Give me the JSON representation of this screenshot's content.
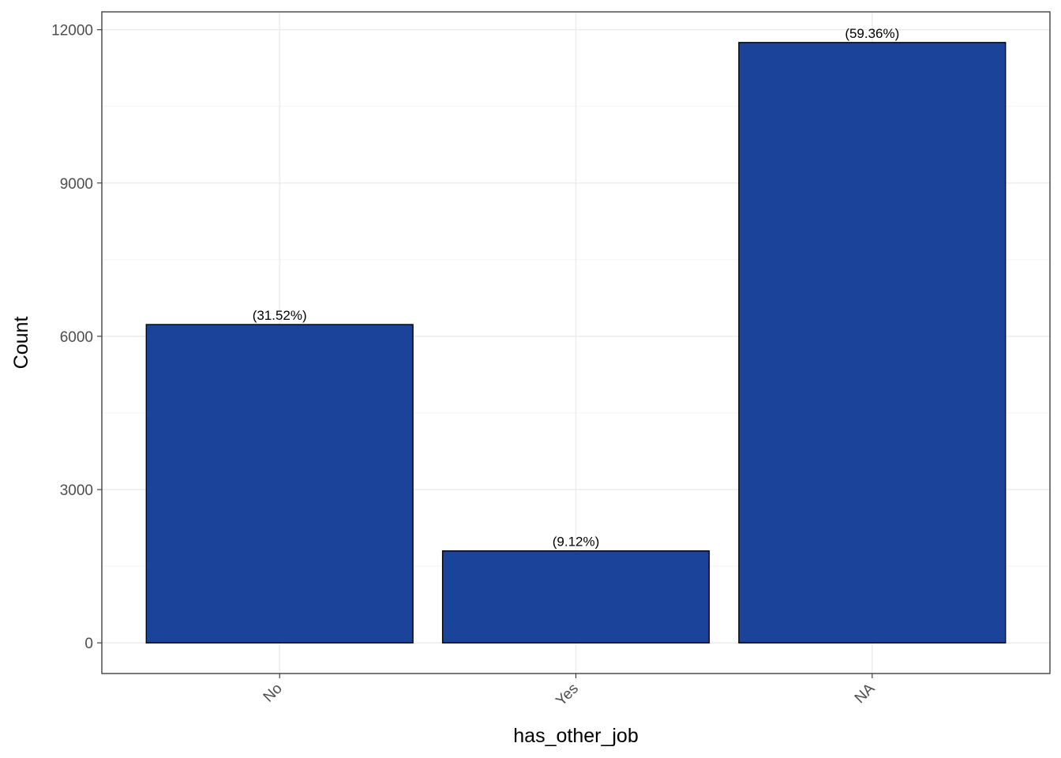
{
  "chart_data": {
    "type": "bar",
    "categories": [
      "No",
      "Yes",
      "NA"
    ],
    "values": [
      6230,
      1800,
      11750
    ],
    "bar_labels": [
      "(31.52%)",
      "(9.12%)",
      "(59.36%)"
    ],
    "title": "",
    "xlabel": "has_other_job",
    "ylabel": "Count",
    "ylim": [
      -600,
      12350
    ],
    "yticks": [
      0,
      3000,
      6000,
      9000,
      12000
    ],
    "ytick_labels": [
      "0",
      "3000",
      "6000",
      "9000",
      "12000"
    ],
    "grid": true,
    "bar_color": "#1A4399",
    "bar_edge_color": "#000000"
  }
}
